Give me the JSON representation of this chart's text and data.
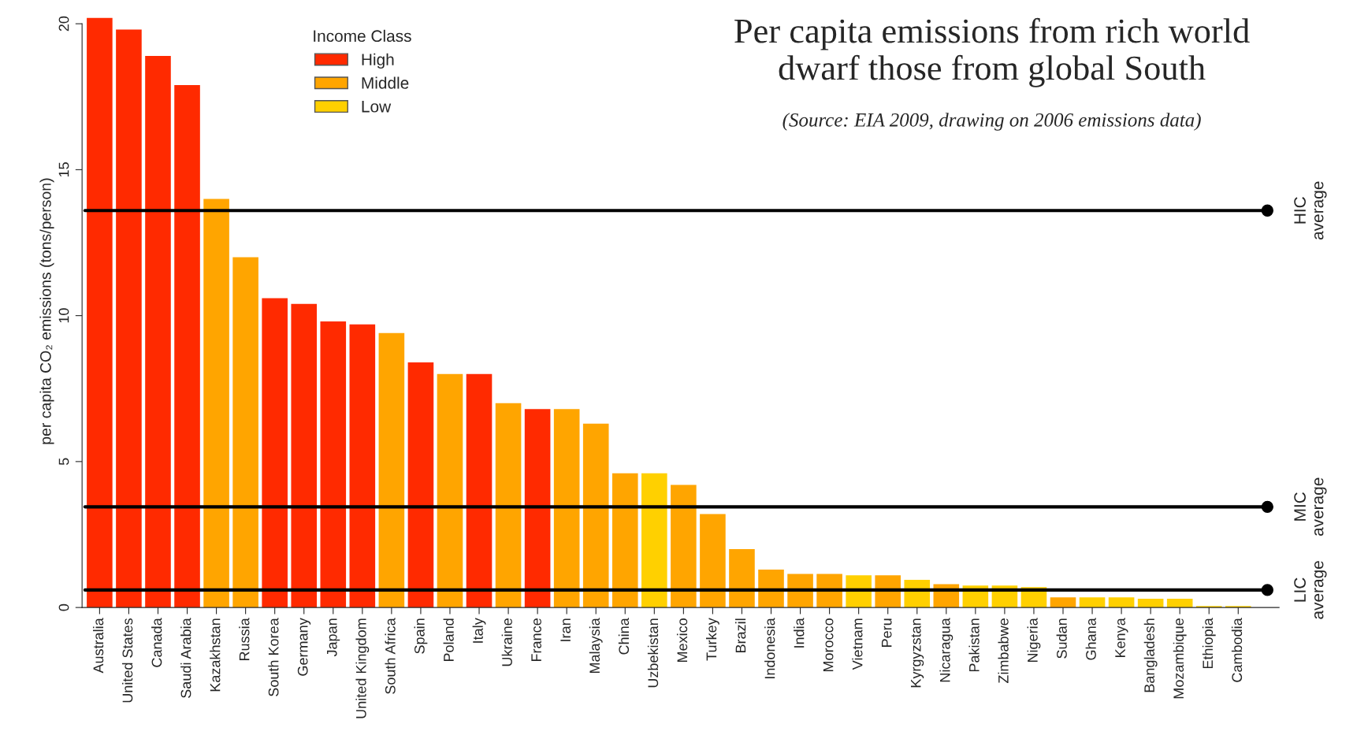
{
  "chart_data": {
    "type": "bar",
    "title": "Per capita emissions from rich world\ndwarf those from global South",
    "subtitle": "(Source: EIA 2009, drawing on 2006 emissions data)",
    "ylabel": "per capita CO₂ emissions (tons/person)",
    "legend_title": "Income Class",
    "legend": "top left",
    "grid": false,
    "categories": [
      "Australia",
      "United States",
      "Canada",
      "Saudi Arabia",
      "Kazakhstan",
      "Russia",
      "South Korea",
      "Germany",
      "Japan",
      "United Kingdom",
      "South Africa",
      "Spain",
      "Poland",
      "Italy",
      "Ukraine",
      "France",
      "Iran",
      "Malaysia",
      "China",
      "Uzbekistan",
      "Mexico",
      "Turkey",
      "Brazil",
      "Indonesia",
      "India",
      "Morocco",
      "Vietnam",
      "Peru",
      "Kyrgyzstan",
      "Nicaragua",
      "Pakistan",
      "Zimbabwe",
      "Nigeria",
      "Sudan",
      "Ghana",
      "Kenya",
      "Bangladesh",
      "Mozambique",
      "Ethiopia",
      "Cambodia"
    ],
    "series": [
      {
        "name": "High",
        "color": "#ff2a00",
        "values": [
          20.2,
          19.8,
          18.9,
          17.9,
          null,
          null,
          10.6,
          10.4,
          9.8,
          9.7,
          null,
          8.4,
          null,
          8.0,
          null,
          6.8,
          null,
          null,
          null,
          null,
          null,
          null,
          null,
          null,
          null,
          null,
          null,
          null,
          null,
          null,
          null,
          null,
          null,
          null,
          null,
          null,
          null,
          null,
          null,
          null
        ]
      },
      {
        "name": "Middle",
        "color": "#ffa500",
        "values": [
          null,
          null,
          null,
          null,
          14.0,
          12.0,
          null,
          null,
          null,
          null,
          9.4,
          null,
          8.0,
          null,
          7.0,
          null,
          6.8,
          6.3,
          4.6,
          null,
          4.2,
          3.2,
          2.0,
          1.3,
          1.15,
          1.15,
          null,
          1.1,
          null,
          0.8,
          null,
          null,
          null,
          0.35,
          null,
          null,
          null,
          null,
          null,
          null
        ]
      },
      {
        "name": "Low",
        "color": "#ffd000",
        "values": [
          null,
          null,
          null,
          null,
          null,
          null,
          null,
          null,
          null,
          null,
          null,
          null,
          null,
          null,
          null,
          null,
          null,
          null,
          null,
          4.6,
          null,
          null,
          null,
          null,
          null,
          null,
          1.1,
          null,
          0.95,
          null,
          0.75,
          0.75,
          0.7,
          null,
          0.35,
          0.35,
          0.3,
          0.3,
          0.05,
          0.05
        ]
      }
    ],
    "ylim": [
      0,
      20.3
    ],
    "yticks": [
      0,
      5,
      10,
      15,
      20
    ],
    "ref_lines": [
      {
        "axis": "y",
        "value": 13.6,
        "label": "HIC\naverage",
        "color": "#000000"
      },
      {
        "axis": "y",
        "value": 3.45,
        "label": "MIC\naverage",
        "color": "#000000"
      },
      {
        "axis": "y",
        "value": 0.6,
        "label": "LIC\naverage",
        "color": "#000000"
      }
    ]
  }
}
